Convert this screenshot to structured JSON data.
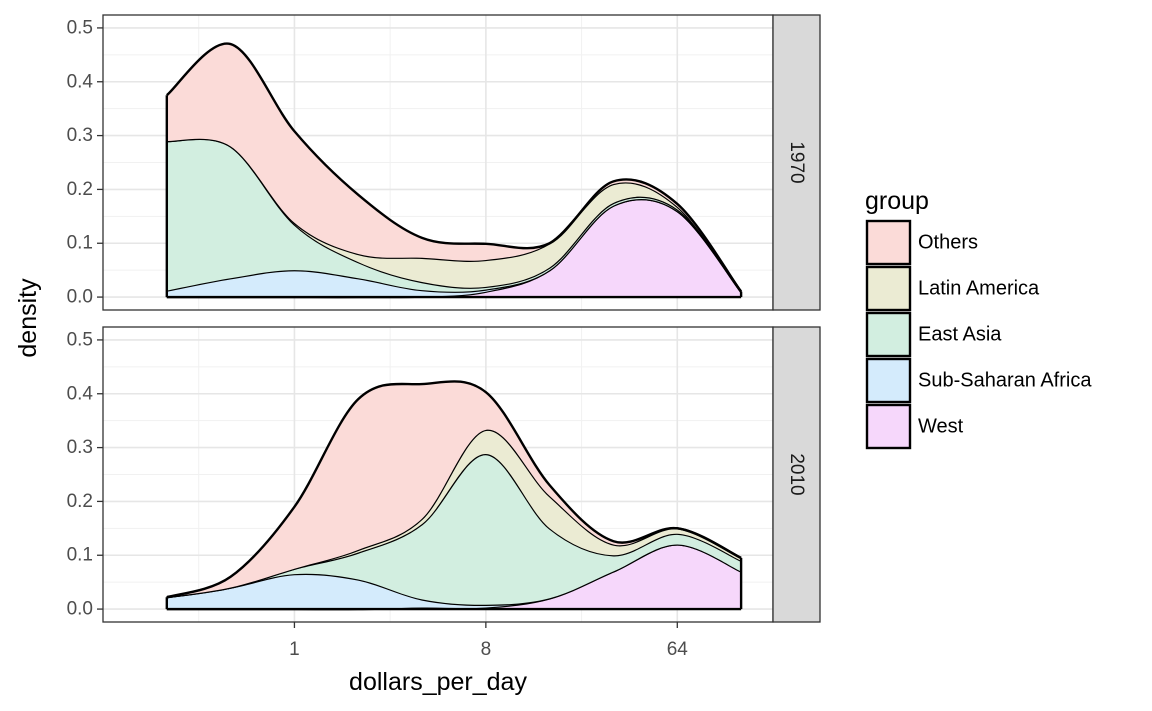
{
  "chart_data": {
    "type": "area",
    "subtype": "stacked-density",
    "xlabel": "dollars_per_day",
    "ylabel": "density",
    "x_scale": "log2",
    "x_range": [
      0.125,
      181
    ],
    "x_ticks": [
      1,
      8,
      64
    ],
    "x_tick_labels": [
      "1",
      "8",
      "64"
    ],
    "ylim": [
      -0.024,
      0.524
    ],
    "y_ticks": [
      0.0,
      0.1,
      0.2,
      0.3,
      0.4,
      0.5
    ],
    "y_tick_labels": [
      "0.0",
      "0.1",
      "0.2",
      "0.3",
      "0.4",
      "0.5"
    ],
    "grid": true,
    "legend": {
      "title": "group",
      "position": "right",
      "entries": [
        "Others",
        "Latin America",
        "East Asia",
        "Sub-Saharan Africa",
        "West"
      ]
    },
    "colors": {
      "Others": "#fbdbd8",
      "Latin America": "#ebebd3",
      "East Asia": "#d2eee0",
      "Sub-Saharan Africa": "#d4ebfc",
      "West": "#f6d7fb"
    },
    "stack_order_bottom_to_top": [
      "West",
      "Sub-Saharan Africa",
      "East Asia",
      "Latin America",
      "Others"
    ],
    "panels": [
      {
        "strip": "1970",
        "x": [
          0.25,
          0.5,
          1,
          2,
          4,
          8,
          16,
          32,
          64,
          128
        ],
        "series": [
          {
            "name": "West",
            "values": [
              0.0,
              0.0,
              0.0,
              0.0,
              0.001,
              0.01,
              0.05,
              0.17,
              0.16,
              0.01
            ]
          },
          {
            "name": "Sub-Saharan Africa",
            "values": [
              0.012,
              0.035,
              0.05,
              0.035,
              0.012,
              0.004,
              0.0,
              0.0,
              0.0,
              0.0
            ]
          },
          {
            "name": "East Asia",
            "values": [
              0.278,
              0.245,
              0.085,
              0.03,
              0.015,
              0.005,
              0.005,
              0.005,
              0.003,
              0.0
            ]
          },
          {
            "name": "Latin America",
            "values": [
              0.0,
              0.0,
              0.003,
              0.015,
              0.045,
              0.05,
              0.045,
              0.035,
              0.005,
              0.0
            ]
          },
          {
            "name": "Others",
            "values": [
              0.085,
              0.19,
              0.17,
              0.11,
              0.037,
              0.03,
              0.0,
              0.005,
              0.005,
              0.0
            ]
          }
        ]
      },
      {
        "strip": "2010",
        "x": [
          0.25,
          0.5,
          1,
          2,
          4,
          8,
          16,
          32,
          64,
          128
        ],
        "series": [
          {
            "name": "West",
            "values": [
              0.0,
              0.0,
              0.0,
              0.0,
              0.003,
              0.003,
              0.02,
              0.07,
              0.12,
              0.07
            ]
          },
          {
            "name": "Sub-Saharan Africa",
            "values": [
              0.022,
              0.04,
              0.065,
              0.055,
              0.015,
              0.005,
              0.0,
              0.0,
              0.0,
              0.0
            ]
          },
          {
            "name": "East Asia",
            "values": [
              0.0,
              0.0,
              0.01,
              0.05,
              0.14,
              0.28,
              0.13,
              0.03,
              0.02,
              0.02
            ]
          },
          {
            "name": "Latin America",
            "values": [
              0.0,
              0.0,
              0.0,
              0.005,
              0.01,
              0.045,
              0.06,
              0.02,
              0.01,
              0.005
            ]
          },
          {
            "name": "Others",
            "values": [
              0.0,
              0.02,
              0.115,
              0.28,
              0.25,
              0.07,
              0.02,
              0.006,
              0.0,
              0.0
            ]
          }
        ]
      }
    ]
  }
}
